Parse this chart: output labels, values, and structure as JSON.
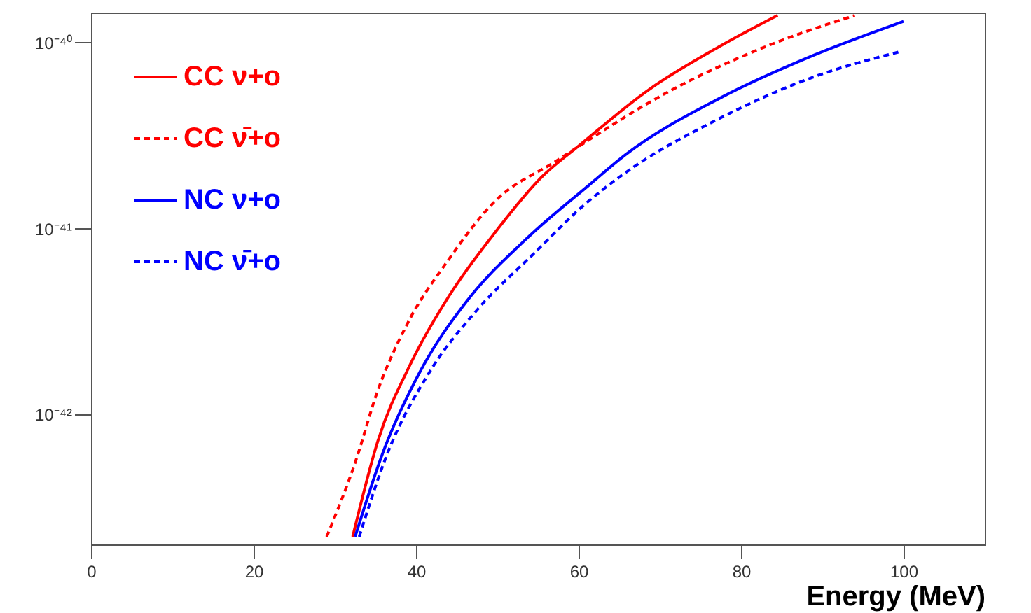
{
  "chart_data": {
    "type": "line",
    "xlabel": "Energy (MeV)",
    "log": "y",
    "xlim": [
      0,
      110
    ],
    "xticks": [
      0,
      20,
      40,
      60,
      80,
      100
    ],
    "ylim": [
      2e-43,
      1.45e-40
    ],
    "yticks": [
      {
        "value": 1e-42,
        "label": "10⁻⁴²"
      },
      {
        "value": 1e-41,
        "label": "10⁻⁴¹"
      },
      {
        "value": 1e-40,
        "label": "10⁻⁴⁰"
      }
    ],
    "grid": false,
    "legend": "top left",
    "marker": "none",
    "series": [
      {
        "name": "CC ν+o",
        "color": "#ff0000",
        "line_style": "solid",
        "x": [
          32.2,
          35.3,
          39.4,
          44.0,
          49.7,
          55.5,
          60.1,
          68.7,
          77.3,
          84.5
        ],
        "values": [
          2.2e-43,
          7.2e-43,
          1.9e-42,
          4.3e-42,
          9.5e-42,
          1.9e-41,
          2.8e-41,
          5.6e-41,
          9.5e-41,
          1.4e-40
        ]
      },
      {
        "name": "CC ν̄+o",
        "color": "#ff0000",
        "line_style": "dashed",
        "x": [
          29.0,
          32.5,
          35.3,
          38.8,
          44.0,
          49.7,
          57.2,
          71.6,
          83.0,
          94.0
        ],
        "values": [
          2.2e-43,
          5.5e-43,
          1.35e-42,
          3e-42,
          6.8e-42,
          1.4e-41,
          2.3e-41,
          5.6e-41,
          9.5e-41,
          1.4e-40
        ]
      },
      {
        "name": "NC ν+o",
        "color": "#0000ff",
        "line_style": "solid",
        "x": [
          32.5,
          35.9,
          40.5,
          46.3,
          53.2,
          61.2,
          65.8,
          77.3,
          88.8,
          100
        ],
        "values": [
          2.2e-43,
          6.2e-43,
          1.7e-42,
          4.1e-42,
          8.5e-42,
          1.7e-41,
          2.5e-41,
          5e-41,
          8.5e-41,
          1.3e-40
        ]
      },
      {
        "name": "NC ν̄+o",
        "color": "#0000ff",
        "line_style": "dashed",
        "x": [
          33.0,
          36.5,
          41.7,
          47.4,
          54.3,
          61.2,
          65.8,
          77.3,
          88.8,
          99.4
        ],
        "values": [
          2.2e-43,
          6.2e-43,
          1.7e-42,
          3.6e-42,
          7.2e-42,
          1.4e-41,
          2e-41,
          3.9e-41,
          6.5e-41,
          8.9e-41
        ]
      }
    ]
  }
}
